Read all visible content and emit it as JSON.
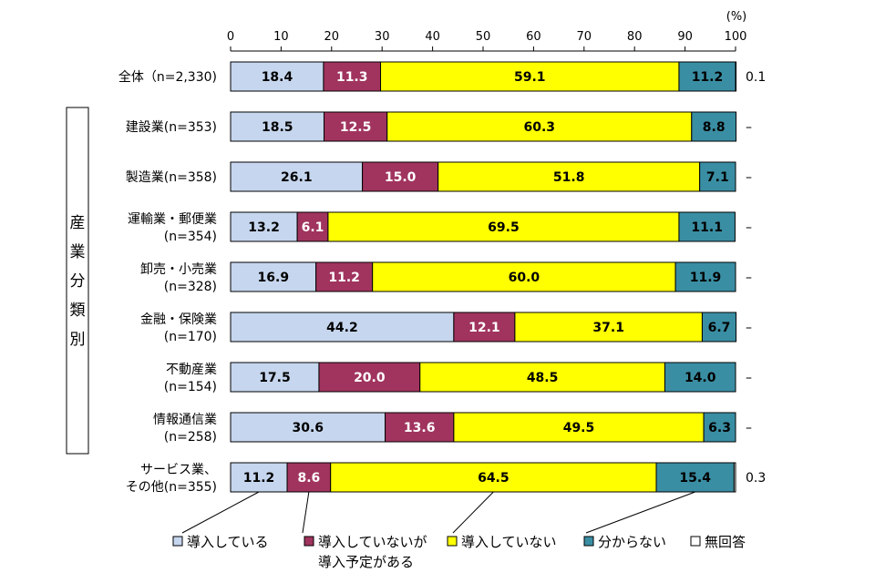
{
  "chart_data": {
    "type": "bar",
    "orientation": "horizontal",
    "stacked": true,
    "percent_unit": "(%)",
    "xlim": [
      0,
      100
    ],
    "x_ticks": [
      "0",
      "10",
      "20",
      "30",
      "40",
      "50",
      "60",
      "70",
      "80",
      "90",
      "100"
    ],
    "group_label": "産業分類別",
    "categories": [
      {
        "line1": "全体（n=2,330)",
        "line2": ""
      },
      {
        "line1": "建設業(n=353)",
        "line2": ""
      },
      {
        "line1": "製造業(n=358)",
        "line2": ""
      },
      {
        "line1": "運輸業・郵便業",
        "line2": "(n=354)"
      },
      {
        "line1": "卸売・小売業",
        "line2": "(n=328)"
      },
      {
        "line1": "金融・保険業",
        "line2": "(n=170)"
      },
      {
        "line1": "不動産業",
        "line2": "(n=154)"
      },
      {
        "line1": "情報通信業",
        "line2": "(n=258)"
      },
      {
        "line1": "サービス業、",
        "line2": "その他(n=355)"
      }
    ],
    "series": [
      {
        "name": "導入している",
        "color": "#c6d6ee",
        "text_color": "#000000",
        "values": [
          18.4,
          18.5,
          26.1,
          13.2,
          16.9,
          44.2,
          17.5,
          30.6,
          11.2
        ],
        "labels": [
          "18.4",
          "18.5",
          "26.1",
          "13.2",
          "16.9",
          "44.2",
          "17.5",
          "30.6",
          "11.2"
        ]
      },
      {
        "name": "導入していないが導入予定がある",
        "color": "#a0345e",
        "text_color": "#ffffff",
        "values": [
          11.3,
          12.5,
          15.0,
          6.1,
          11.2,
          12.1,
          20.0,
          13.6,
          8.6
        ],
        "labels": [
          "11.3",
          "12.5",
          "15.0",
          "6.1",
          "11.2",
          "12.1",
          "20.0",
          "13.6",
          "8.6"
        ]
      },
      {
        "name": "導入していない",
        "color": "#ffff00",
        "text_color": "#000000",
        "values": [
          59.1,
          60.3,
          51.8,
          69.5,
          60.0,
          37.1,
          48.5,
          49.5,
          64.5
        ],
        "labels": [
          "59.1",
          "60.3",
          "51.8",
          "69.5",
          "60.0",
          "37.1",
          "48.5",
          "49.5",
          "64.5"
        ]
      },
      {
        "name": "分からない",
        "color": "#3a8ea3",
        "text_color": "#000000",
        "values": [
          11.2,
          8.8,
          7.1,
          11.1,
          11.9,
          6.7,
          14.0,
          6.3,
          15.4
        ],
        "labels": [
          "11.2",
          "8.8",
          "7.1",
          "11.1",
          "11.9",
          "6.7",
          "14.0",
          "6.3",
          "15.4"
        ]
      },
      {
        "name": "無回答",
        "color": "#ffffff",
        "text_color": "#000000",
        "values": [
          0.1,
          0,
          0,
          0,
          0,
          0,
          0,
          0,
          0.3
        ],
        "labels": [
          "0.1",
          "–",
          "–",
          "–",
          "–",
          "–",
          "–",
          "–",
          "0.3"
        ]
      }
    ],
    "legend": [
      {
        "line1": "導入している",
        "line2": ""
      },
      {
        "line1": "導入していないが",
        "line2": "導入予定がある"
      },
      {
        "line1": "導入していない",
        "line2": ""
      },
      {
        "line1": "分からない",
        "line2": ""
      },
      {
        "line1": "無回答",
        "line2": ""
      }
    ],
    "legend_position": "bottom"
  }
}
